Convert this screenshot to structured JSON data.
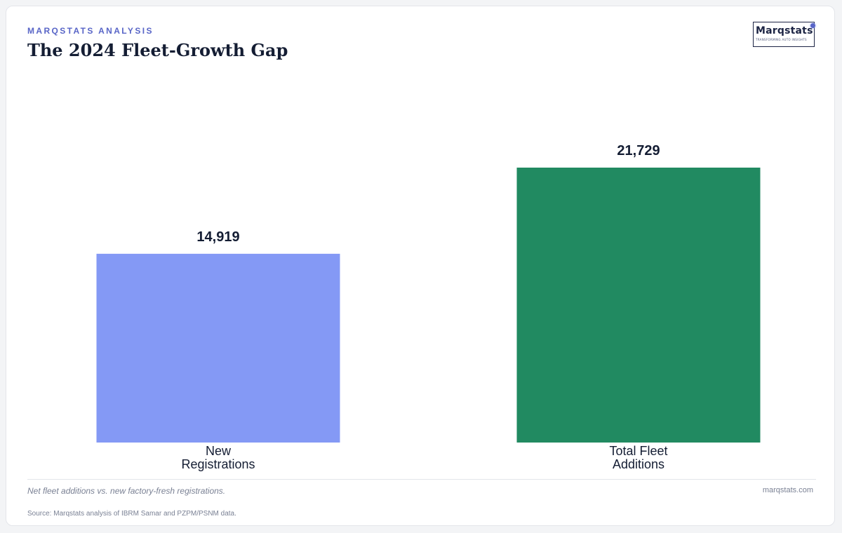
{
  "header": {
    "eyebrow": "MARQSTATS ANALYSIS",
    "title": "The 2024 Fleet-Growth Gap"
  },
  "logo": {
    "wordmark": "Marqstats",
    "tagline": "TRANSFORMING AUTO INSIGHTS"
  },
  "footer": {
    "note": "Net fleet additions vs. new factory-fresh registrations.",
    "site": "marqstats.com",
    "source": "Source: Marqstats analysis of IBRM Samar and PZPM/PSNM data."
  },
  "chart_data": {
    "type": "bar",
    "title": "The 2024 Fleet-Growth Gap",
    "categories": [
      "New Registrations",
      "Total Fleet Additions"
    ],
    "category_lines": [
      [
        "New",
        "Registrations"
      ],
      [
        "Total Fleet",
        "Additions"
      ]
    ],
    "values": [
      14919,
      21729
    ],
    "value_labels": [
      "14,919",
      "21,729"
    ],
    "colors": [
      "#8499f5",
      "#218a61"
    ],
    "ylim": [
      0,
      24000
    ],
    "grid": false,
    "legend": "none",
    "xlabel": "",
    "ylabel": ""
  }
}
